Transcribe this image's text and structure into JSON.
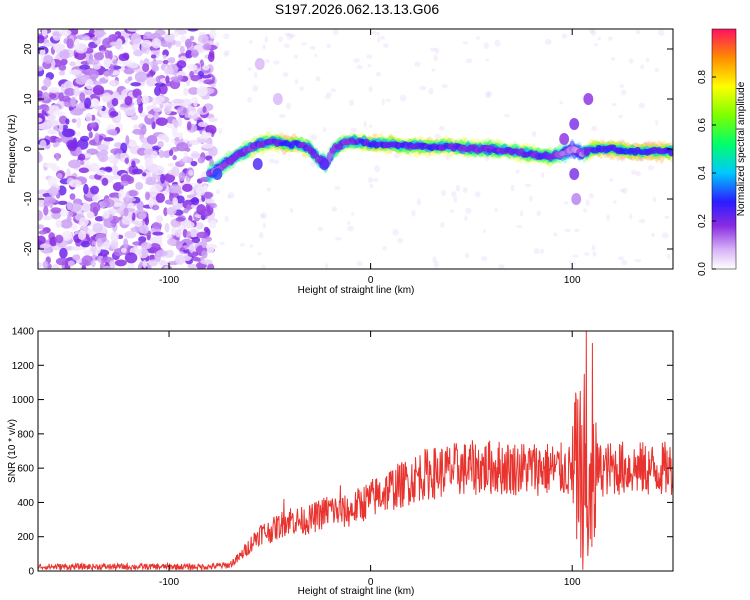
{
  "chart_data": [
    {
      "type": "heatmap",
      "title": "S197.2026.062.13.13.G06",
      "xlabel": "Height of straight line (km)",
      "ylabel": "Frequency (Hz)",
      "xlim": [
        -165,
        150
      ],
      "ylim": [
        -24,
        24
      ],
      "xticks": [
        -100,
        0,
        100
      ],
      "yticks": [
        -20,
        -10,
        0,
        10,
        20
      ],
      "colorbar": {
        "label": "Normalized spectral amplitude",
        "range": [
          0,
          1
        ],
        "ticks": [
          0.0,
          0.2,
          0.4,
          0.6,
          0.8
        ]
      },
      "noise_region_x": [
        -165,
        -78
      ],
      "ridge": {
        "x": [
          -80,
          -72,
          -65,
          -55,
          -48,
          -42,
          -36,
          -30,
          -26,
          -22,
          -18,
          -12,
          -5,
          0,
          10,
          20,
          30,
          40,
          50,
          60,
          70,
          80,
          88,
          95,
          100,
          105,
          110,
          120,
          130,
          140,
          150
        ],
        "freq": [
          -5,
          -3,
          -1,
          1,
          1.5,
          1,
          1,
          0,
          -2,
          -3,
          0,
          1.5,
          1.5,
          1,
          1,
          0.5,
          0.5,
          0.5,
          0,
          0,
          -0.5,
          -1,
          -1.5,
          -1,
          0,
          -1,
          0,
          0,
          -0.5,
          -0.5,
          -0.5
        ],
        "amp": [
          0.5,
          0.55,
          0.6,
          0.7,
          0.75,
          0.9,
          0.8,
          0.65,
          0.55,
          0.5,
          0.6,
          0.7,
          0.75,
          0.85,
          0.8,
          0.75,
          0.8,
          0.75,
          0.7,
          0.7,
          0.72,
          0.75,
          0.7,
          0.55,
          0.35,
          0.45,
          0.85,
          0.85,
          0.92,
          0.9,
          0.8
        ]
      }
    },
    {
      "type": "line",
      "xlabel": "Height of straight line (km)",
      "ylabel": "SNR (10 * v/v)",
      "xlim": [
        -165,
        150
      ],
      "ylim": [
        0,
        1400
      ],
      "xticks": [
        -100,
        0,
        100
      ],
      "yticks": [
        0,
        200,
        400,
        600,
        800,
        1000,
        1200,
        1400
      ],
      "color": "#e8332e",
      "series": [
        {
          "name": "SNR",
          "x": [
            -165,
            -80,
            -70,
            -65,
            -60,
            -55,
            -50,
            -40,
            -35,
            -30,
            -25,
            -20,
            -15,
            -10,
            -5,
            0,
            5,
            10,
            15,
            20,
            25,
            30,
            40,
            50,
            60,
            70,
            80,
            90,
            95,
            100,
            102,
            104,
            106,
            108,
            110,
            112,
            115,
            120,
            130,
            140,
            150
          ],
          "y": [
            25,
            25,
            35,
            80,
            150,
            220,
            230,
            300,
            290,
            300,
            330,
            360,
            340,
            350,
            390,
            420,
            450,
            480,
            500,
            530,
            560,
            570,
            590,
            600,
            605,
            600,
            600,
            595,
            590,
            580,
            600,
            500,
            420,
            400,
            350,
            600,
            590,
            600,
            600,
            590,
            600
          ]
        }
      ],
      "peaks": [
        {
          "x": 102,
          "y": 1000
        },
        {
          "x": 104,
          "y": 1050
        },
        {
          "x": 106,
          "y": 1150
        },
        {
          "x": 107,
          "y": 1400
        },
        {
          "x": 110,
          "y": 1330
        },
        {
          "x": -43,
          "y": 420
        },
        {
          "x": -15,
          "y": 500
        }
      ]
    }
  ]
}
